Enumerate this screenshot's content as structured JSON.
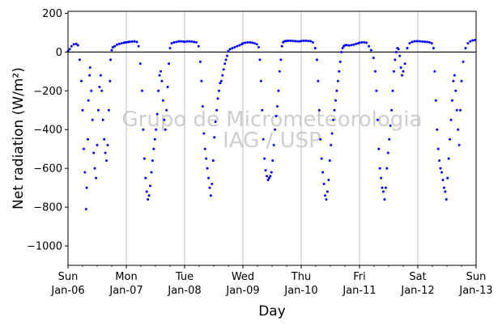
{
  "chart_data": {
    "type": "scatter",
    "xlabel": "Day",
    "ylabel": "Net radiation (W/m²)",
    "ylim": [
      -1100,
      210
    ],
    "xlim_days": [
      0,
      7
    ],
    "y_ticks": [
      200,
      0,
      -200,
      -400,
      -600,
      -800,
      -1000
    ],
    "y_tick_labels": [
      "200",
      "0",
      "−200",
      "−400",
      "−600",
      "−800",
      "−1000"
    ],
    "x_ticks": [
      {
        "day": 0,
        "weekday": "Sun",
        "date": "Jan-06"
      },
      {
        "day": 1,
        "weekday": "Mon",
        "date": "Jan-07"
      },
      {
        "day": 2,
        "weekday": "Tue",
        "date": "Jan-08"
      },
      {
        "day": 3,
        "weekday": "Wed",
        "date": "Jan-09"
      },
      {
        "day": 4,
        "weekday": "Thu",
        "date": "Jan-10"
      },
      {
        "day": 5,
        "weekday": "Fri",
        "date": "Jan-11"
      },
      {
        "day": 6,
        "weekday": "Sat",
        "date": "Jan-12"
      },
      {
        "day": 7,
        "weekday": "Sun",
        "date": "Jan-13"
      }
    ],
    "grid": "vertical",
    "zero_line": true,
    "marker_color": "#0000ff",
    "watermark": [
      "Grupo de Micrometeorologia",
      "IAG / USP"
    ],
    "series": [
      {
        "x": [
          0.0,
          0.03,
          0.06,
          0.1,
          0.14,
          0.17,
          0.2,
          0.23,
          0.25,
          0.27,
          0.29,
          0.31,
          0.32,
          0.34,
          0.35,
          0.37,
          0.38,
          0.4,
          0.42,
          0.44,
          0.46,
          0.48,
          0.5,
          0.52,
          0.54,
          0.56,
          0.58,
          0.6,
          0.62,
          0.64,
          0.66,
          0.68,
          0.7,
          0.72,
          0.73,
          0.75,
          0.77,
          0.8,
          0.84,
          0.88,
          0.92,
          0.96,
          0.98,
          1.0,
          1.03,
          1.06,
          1.1,
          1.14,
          1.18,
          1.21,
          1.24,
          1.27,
          1.29,
          1.31,
          1.33,
          1.35,
          1.37,
          1.39,
          1.41,
          1.43,
          1.45,
          1.47,
          1.49,
          1.51,
          1.53,
          1.55,
          1.57,
          1.59,
          1.61,
          1.63,
          1.65,
          1.67,
          1.69,
          1.71,
          1.73,
          1.75,
          1.78,
          1.82,
          1.86,
          1.9,
          1.94,
          1.98,
          2.0,
          2.04,
          2.08,
          2.12,
          2.16,
          2.2,
          2.24,
          2.27,
          2.29,
          2.31,
          2.33,
          2.35,
          2.37,
          2.39,
          2.41,
          2.43,
          2.45,
          2.47,
          2.49,
          2.51,
          2.53,
          2.55,
          2.57,
          2.59,
          2.61,
          2.63,
          2.65,
          2.67,
          2.69,
          2.71,
          2.73,
          2.75,
          2.78,
          2.82,
          2.86,
          2.9,
          2.94,
          2.98,
          3.0,
          3.04,
          3.08,
          3.12,
          3.16,
          3.2,
          3.24,
          3.27,
          3.29,
          3.31,
          3.33,
          3.35,
          3.37,
          3.39,
          3.41,
          3.43,
          3.45,
          3.47,
          3.49,
          3.51,
          3.53,
          3.55,
          3.57,
          3.59,
          3.61,
          3.63,
          3.65,
          3.67,
          3.69,
          3.71,
          3.73,
          3.75,
          3.78,
          3.82,
          3.86,
          3.9,
          3.94,
          3.98,
          4.0,
          4.04,
          4.08,
          4.12,
          4.16,
          4.2,
          4.24,
          4.27,
          4.29,
          4.31,
          4.33,
          4.35,
          4.37,
          4.39,
          4.41,
          4.43,
          4.45,
          4.47,
          4.49,
          4.51,
          4.53,
          4.55,
          4.57,
          4.59,
          4.61,
          4.63,
          4.65,
          4.67,
          4.69,
          4.71,
          4.73,
          4.75,
          4.78,
          4.82,
          4.86,
          4.9,
          4.94,
          4.98,
          5.0,
          5.04,
          5.08,
          5.12,
          5.16,
          5.2,
          5.24,
          5.27,
          5.29,
          5.31,
          5.33,
          5.35,
          5.37,
          5.39,
          5.41,
          5.43,
          5.45,
          5.47,
          5.49,
          5.51,
          5.53,
          5.55,
          5.57,
          5.59,
          5.61,
          5.63,
          5.65,
          5.67,
          5.69,
          5.71,
          5.73,
          5.75,
          5.78,
          5.82,
          5.86,
          5.9,
          5.94,
          5.98,
          6.0,
          6.04,
          6.08,
          6.12,
          6.16,
          6.2,
          6.24,
          6.27,
          6.29,
          6.31,
          6.33,
          6.35,
          6.37,
          6.39,
          6.41,
          6.43,
          6.45,
          6.47,
          6.49,
          6.51,
          6.53,
          6.55,
          6.57,
          6.59,
          6.61,
          6.63,
          6.65,
          6.67,
          6.69,
          6.71,
          6.73,
          6.75,
          6.78,
          6.82,
          6.86,
          6.9,
          6.94,
          6.98
        ],
        "y": [
          5,
          15,
          30,
          40,
          42,
          35,
          -40,
          -150,
          -300,
          -500,
          -620,
          -810,
          -700,
          -450,
          -250,
          -120,
          -80,
          -200,
          -350,
          -520,
          -600,
          -650,
          -480,
          -300,
          -180,
          -120,
          -200,
          -350,
          -450,
          -520,
          -560,
          -480,
          -300,
          -150,
          -40,
          10,
          25,
          30,
          38,
          42,
          45,
          48,
          50,
          50,
          52,
          53,
          54,
          55,
          52,
          30,
          -60,
          -200,
          -400,
          -550,
          -650,
          -720,
          -760,
          -740,
          -690,
          -620,
          -560,
          -500,
          -450,
          -400,
          -320,
          -200,
          -120,
          -100,
          -150,
          -250,
          -350,
          -400,
          -300,
          -180,
          -60,
          20,
          45,
          50,
          52,
          55,
          55,
          54,
          52,
          55,
          55,
          54,
          52,
          50,
          30,
          -50,
          -150,
          -280,
          -420,
          -500,
          -550,
          -600,
          -650,
          -700,
          -740,
          -680,
          -560,
          -440,
          -360,
          -300,
          -240,
          -200,
          -160,
          -150,
          -120,
          -90,
          -60,
          -40,
          -20,
          5,
          15,
          20,
          25,
          30,
          35,
          40,
          45,
          48,
          50,
          50,
          48,
          45,
          40,
          25,
          -40,
          -150,
          -300,
          -450,
          -550,
          -610,
          -640,
          -660,
          -650,
          -640,
          -620,
          -560,
          -480,
          -400,
          -330,
          -280,
          -200,
          -100,
          -40,
          30,
          50,
          55,
          56,
          57,
          58,
          58,
          57,
          56,
          55,
          55,
          57,
          58,
          58,
          57,
          56,
          50,
          20,
          -40,
          -150,
          -300,
          -450,
          -550,
          -620,
          -680,
          -740,
          -760,
          -720,
          -660,
          -560,
          -480,
          -420,
          -350,
          -300,
          -250,
          -200,
          -150,
          -100,
          -50,
          0,
          20,
          30,
          35,
          36,
          34,
          36,
          38,
          42,
          45,
          48,
          50,
          50,
          48,
          30,
          10,
          -30,
          -100,
          -200,
          -350,
          -500,
          -600,
          -650,
          -700,
          -720,
          -760,
          -700,
          -600,
          -520,
          -450,
          -380,
          -300,
          -200,
          -100,
          -40,
          0,
          20,
          15,
          -20,
          -80,
          -120,
          -100,
          -60,
          20,
          45,
          52,
          55,
          56,
          56,
          55,
          54,
          53,
          52,
          50,
          45,
          20,
          -100,
          -250,
          -400,
          -500,
          -560,
          -600,
          -620,
          -660,
          -700,
          -720,
          -760,
          -650,
          -550,
          -450,
          -350,
          -250,
          -150,
          -120,
          -200,
          -300,
          -400,
          -480,
          -300,
          -150,
          -50,
          20,
          45,
          55,
          60,
          62
        ]
      }
    ]
  }
}
